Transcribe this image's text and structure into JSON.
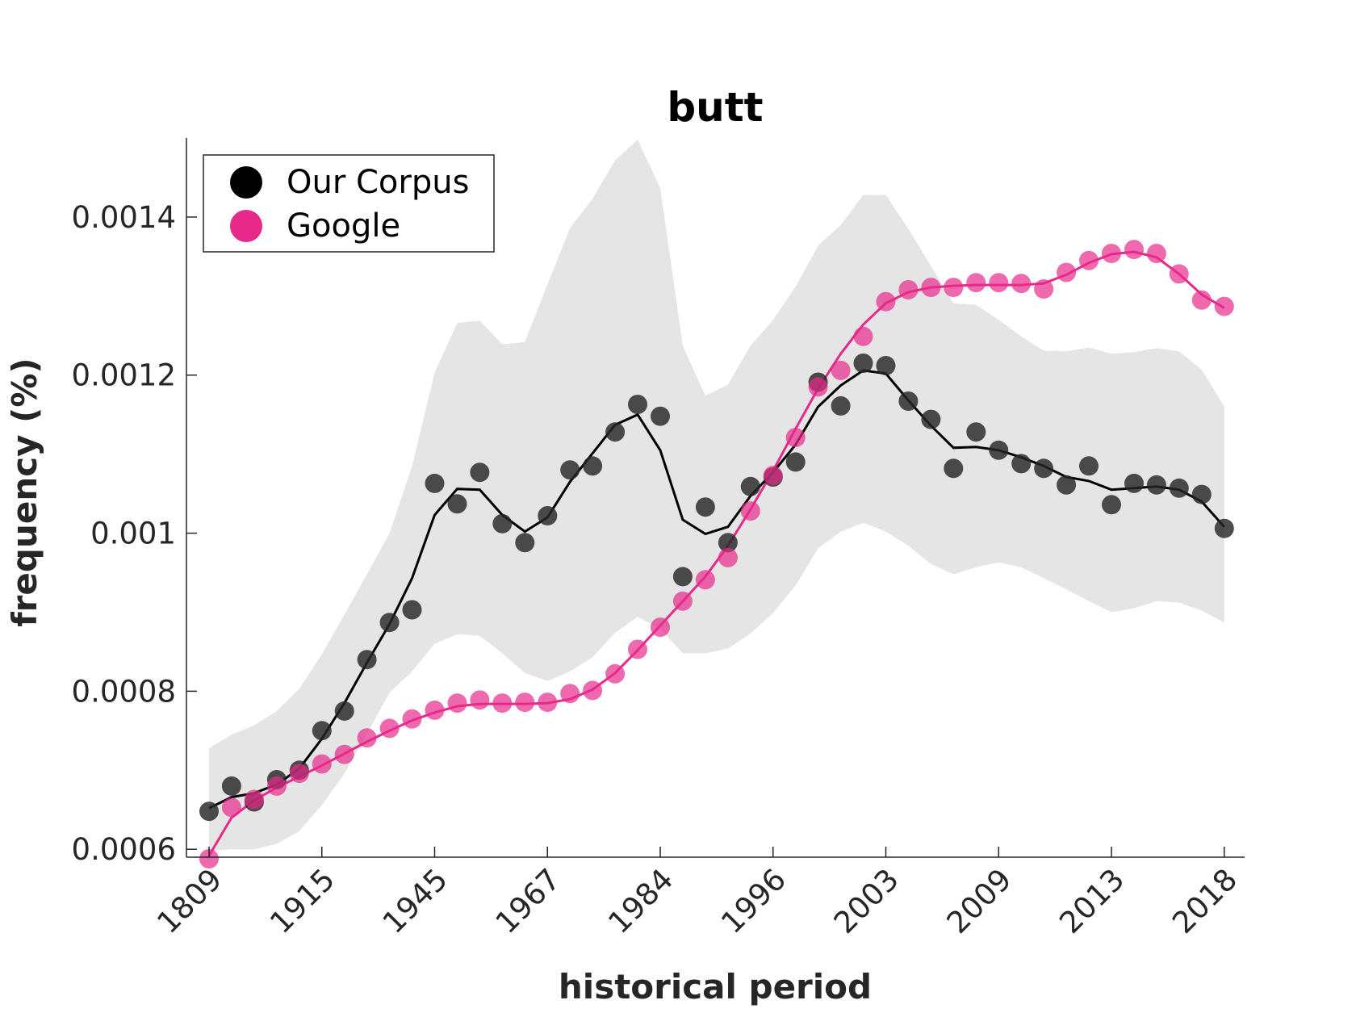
{
  "chart_data": {
    "type": "line",
    "title": "butt",
    "xlabel": "historical period",
    "ylabel": "frequency (%)",
    "ylim": [
      0.00059,
      0.0015
    ],
    "grid": false,
    "legend_position": "top-left",
    "x_tick_labels": [
      "1809",
      "1915",
      "1945",
      "1967",
      "1984",
      "1996",
      "2003",
      "2009",
      "2013",
      "2018"
    ],
    "y_tick_labels": [
      "0.0006",
      "0.0008",
      "0.001",
      "0.0012",
      "0.0014"
    ],
    "y_tick_values": [
      0.0006,
      0.0008,
      0.001,
      0.0012,
      0.0014
    ],
    "n_points": 46,
    "colors": {
      "corpus": "#000000",
      "google": "#e7298a",
      "band": "#e5e5e5"
    },
    "series": [
      {
        "name": "Our Corpus",
        "points": [
          0.000648,
          0.00068,
          0.00066,
          0.000688,
          0.0007,
          0.00075,
          0.000775,
          0.00084,
          0.000887,
          0.000903,
          0.001063,
          0.001037,
          0.001077,
          0.001012,
          0.000988,
          0.001022,
          0.00108,
          0.001085,
          0.001128,
          0.001163,
          0.001148,
          0.000945,
          0.001033,
          0.000988,
          0.001059,
          0.001071,
          0.00109,
          0.001191,
          0.001161,
          0.001215,
          0.001212,
          0.001167,
          0.001144,
          0.001082,
          0.001128,
          0.001105,
          0.001088,
          0.001082,
          0.001061,
          0.001085,
          0.001036,
          0.001063,
          0.001061,
          0.001057,
          0.001049,
          0.001006
        ],
        "smoothed": [
          0.000652,
          0.000666,
          0.000671,
          0.000682,
          0.000702,
          0.00074,
          0.000785,
          0.000836,
          0.000885,
          0.000943,
          0.001023,
          0.001056,
          0.001055,
          0.001023,
          0.001002,
          0.00102,
          0.001065,
          0.001101,
          0.001137,
          0.00115,
          0.001105,
          0.001017,
          0.000999,
          0.001008,
          0.001047,
          0.001077,
          0.001112,
          0.00116,
          0.001187,
          0.001206,
          0.001202,
          0.001168,
          0.001136,
          0.001108,
          0.001109,
          0.001105,
          0.001096,
          0.001085,
          0.001071,
          0.001066,
          0.001055,
          0.001057,
          0.001059,
          0.001055,
          0.00104,
          0.001008
        ],
        "band_upper": [
          0.000728,
          0.000745,
          0.000757,
          0.000775,
          0.000803,
          0.000847,
          0.000897,
          0.000948,
          0.001,
          0.001085,
          0.001203,
          0.001266,
          0.001269,
          0.001239,
          0.001242,
          0.001315,
          0.001386,
          0.001423,
          0.001472,
          0.001498,
          0.001437,
          0.001237,
          0.001174,
          0.001188,
          0.001237,
          0.00127,
          0.001312,
          0.001364,
          0.00139,
          0.001428,
          0.001428,
          0.001385,
          0.001338,
          0.001291,
          0.001289,
          0.00127,
          0.001249,
          0.001231,
          0.00123,
          0.001235,
          0.001227,
          0.001229,
          0.001234,
          0.00123,
          0.001207,
          0.00116
        ],
        "band_lower": [
          0.000598,
          0.0006,
          0.0006,
          0.000607,
          0.000623,
          0.000656,
          0.000696,
          0.000746,
          0.000798,
          0.000825,
          0.00086,
          0.000872,
          0.00087,
          0.000848,
          0.000823,
          0.000813,
          0.000825,
          0.000843,
          0.000874,
          0.000894,
          0.000879,
          0.000848,
          0.000848,
          0.000854,
          0.000873,
          0.000899,
          0.000934,
          0.000981,
          0.001002,
          0.001013,
          0.001002,
          0.000984,
          0.000961,
          0.000948,
          0.000957,
          0.000963,
          0.000957,
          0.000943,
          0.000929,
          0.000914,
          0.0009,
          0.000905,
          0.000914,
          0.000912,
          0.000902,
          0.000887
        ]
      },
      {
        "name": "Google",
        "points": [
          0.000588,
          0.000653,
          0.000663,
          0.00068,
          0.000696,
          0.000708,
          0.00072,
          0.000741,
          0.000753,
          0.000765,
          0.000776,
          0.000785,
          0.000789,
          0.000785,
          0.000786,
          0.000786,
          0.000797,
          0.000801,
          0.000822,
          0.000853,
          0.000881,
          0.000914,
          0.000941,
          0.000969,
          0.001028,
          0.001073,
          0.001121,
          0.001185,
          0.001206,
          0.001249,
          0.001293,
          0.001308,
          0.001311,
          0.001311,
          0.001317,
          0.001317,
          0.001316,
          0.001309,
          0.00133,
          0.001345,
          0.001354,
          0.001359,
          0.001354,
          0.001328,
          0.001295,
          0.001287
        ],
        "smoothed": [
          0.000592,
          0.00064,
          0.000662,
          0.000678,
          0.000692,
          0.000706,
          0.000721,
          0.000736,
          0.00075,
          0.000763,
          0.000773,
          0.000781,
          0.000784,
          0.000784,
          0.000784,
          0.000785,
          0.00079,
          0.000802,
          0.000823,
          0.000852,
          0.000883,
          0.000914,
          0.000945,
          0.000984,
          0.00103,
          0.001079,
          0.001132,
          0.001183,
          0.001227,
          0.001264,
          0.001291,
          0.001305,
          0.001311,
          0.001313,
          0.001314,
          0.001314,
          0.001314,
          0.001316,
          0.001327,
          0.001342,
          0.001353,
          0.001356,
          0.001349,
          0.001328,
          0.001302,
          0.001285
        ]
      }
    ]
  }
}
